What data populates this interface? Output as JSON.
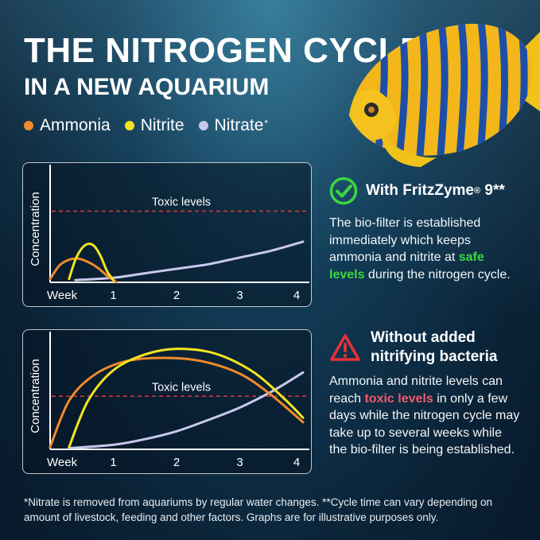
{
  "title": {
    "line1": "THE NITROGEN CYCLE",
    "line2": "IN A NEW AQUARIUM"
  },
  "legend": [
    {
      "label": "Ammonia",
      "color": "#f08a2c",
      "suffix": ""
    },
    {
      "label": "Nitrite",
      "color": "#f2e421",
      "suffix": ""
    },
    {
      "label": "Nitrate",
      "color": "#c9c8ee",
      "suffix": "*"
    }
  ],
  "colors": {
    "ammonia": "#f08a2c",
    "nitrite": "#f2e421",
    "nitrate": "#c9c8ee",
    "toxic_line": "#e03a3a",
    "check": "#3bd642",
    "warning": "#e8323c"
  },
  "chart_data": [
    {
      "type": "line",
      "ylabel": "Concentration",
      "xlabel": "Week",
      "x_ticks": [
        "1",
        "2",
        "3",
        "4"
      ],
      "xlim": [
        0,
        4
      ],
      "ylim": [
        0,
        10
      ],
      "grid": false,
      "annotation": {
        "label": "Toxic levels",
        "y": 6.3
      },
      "series": [
        {
          "name": "Ammonia",
          "key": "ammonia",
          "x": [
            0,
            0.15,
            0.3,
            0.45,
            0.6,
            0.75,
            0.9,
            1.05
          ],
          "y": [
            0.3,
            1.5,
            2.0,
            2.1,
            1.8,
            1.3,
            0.6,
            0
          ]
        },
        {
          "name": "Nitrite",
          "key": "nitrite",
          "x": [
            0.3,
            0.4,
            0.5,
            0.6,
            0.7,
            0.8,
            0.9,
            1.0
          ],
          "y": [
            0.3,
            2.0,
            3.0,
            3.4,
            3.2,
            2.3,
            1.0,
            0.2
          ]
        },
        {
          "name": "Nitrate",
          "key": "nitrate",
          "x": [
            0.4,
            1.0,
            1.5,
            2.0,
            2.5,
            3.0,
            3.5,
            4.0
          ],
          "y": [
            0.2,
            0.4,
            0.8,
            1.2,
            1.6,
            2.2,
            2.8,
            3.6
          ]
        }
      ]
    },
    {
      "type": "line",
      "ylabel": "Concentration",
      "xlabel": "Week",
      "x_ticks": [
        "1",
        "2",
        "3",
        "4"
      ],
      "xlim": [
        0,
        4
      ],
      "ylim": [
        0,
        10
      ],
      "grid": false,
      "annotation": {
        "label": "Toxic levels",
        "y": 4.7
      },
      "series": [
        {
          "name": "Ammonia",
          "key": "ammonia",
          "x": [
            0,
            0.3,
            0.7,
            1.2,
            1.8,
            2.4,
            3.0,
            3.5,
            4.0
          ],
          "y": [
            0.2,
            4.3,
            6.6,
            7.8,
            8.1,
            7.8,
            6.7,
            4.8,
            2.4
          ]
        },
        {
          "name": "Nitrite",
          "key": "nitrite",
          "x": [
            0.3,
            0.6,
            1.0,
            1.5,
            2.0,
            2.6,
            3.2,
            3.7,
            4.0
          ],
          "y": [
            0.2,
            4.3,
            7.0,
            8.4,
            8.9,
            8.5,
            6.9,
            4.5,
            2.8
          ]
        },
        {
          "name": "Nitrate",
          "key": "nitrate",
          "x": [
            0.3,
            1.0,
            1.5,
            2.0,
            2.5,
            3.0,
            3.5,
            4.0
          ],
          "y": [
            0.1,
            0.4,
            0.9,
            1.6,
            2.6,
            3.7,
            5.1,
            6.8
          ]
        }
      ]
    }
  ],
  "info_with": {
    "title_prefix": "With FritzZyme",
    "title_reg": "®",
    "title_suffix": " 9**",
    "text_before": "The bio-filter is established immediately which keeps ammonia and nitrite at ",
    "highlight": "safe levels",
    "text_after": " during the nitrogen cycle.",
    "icon": "check-circle-icon"
  },
  "info_without": {
    "title": "Without added nitrifying bacteria",
    "text_before": "Ammonia and nitrite levels can reach ",
    "highlight": "toxic levels",
    "text_after": " in only a few days while the nitrogen cycle may take up to several weeks while the bio-filter is being established.",
    "icon": "warning-triangle-icon"
  },
  "footnote": "*Nitrate is removed from aquariums by regular water changes. **Cycle time can vary depending on amount of livestock, feeding and other factors. Graphs are for illustrative purposes only."
}
